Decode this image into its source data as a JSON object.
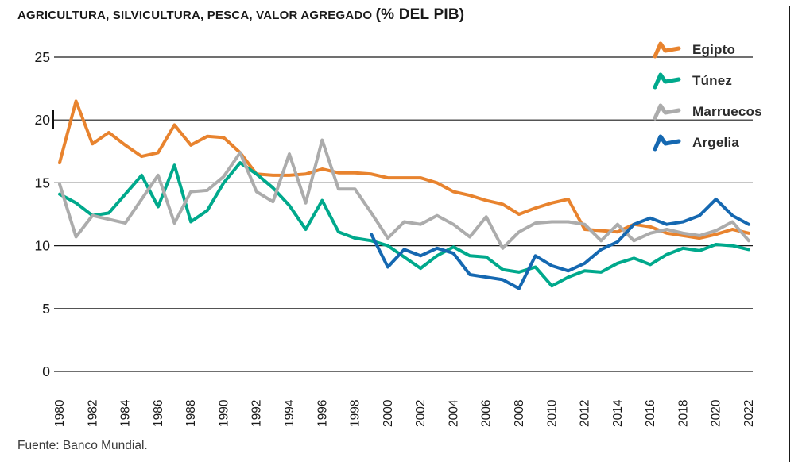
{
  "title": {
    "main": "AGRICULTURA, SILVICULTURA, PESCA, VALOR AGREGADO",
    "unit": "(% DEL PIB)"
  },
  "source": "Fuente: Banco Mundial.",
  "colors": {
    "egipto": "#E8832E",
    "tunez": "#00A98C",
    "marruecos": "#ACACAC",
    "argelia": "#1568B1",
    "grid": "#1A1A1A",
    "text": "#1A1A1A"
  },
  "legend": [
    {
      "id": "egipto",
      "label": "Egipto",
      "color": "#E8832E"
    },
    {
      "id": "tunez",
      "label": "Túnez",
      "color": "#00A98C"
    },
    {
      "id": "marruecos",
      "label": "Marruecos",
      "color": "#ACACAC"
    },
    {
      "id": "argelia",
      "label": "Argelia",
      "color": "#1568B1"
    }
  ],
  "chart_data": {
    "type": "line",
    "title": "AGRICULTURA, SILVICULTURA, PESCA, VALOR AGREGADO (% DEL PIB)",
    "xlabel": "",
    "ylabel": "",
    "xlim": [
      1980,
      2022
    ],
    "x_step": 1,
    "ylim": [
      0,
      25
    ],
    "y_ticks": [
      0,
      5,
      10,
      15,
      20,
      25
    ],
    "x_tick_labels": [
      "1980",
      "1982",
      "1984",
      "1986",
      "1988",
      "1990",
      "1992",
      "1994",
      "1996",
      "1998",
      "2000",
      "2002",
      "2004",
      "2006",
      "2008",
      "2010",
      "2012",
      "2014",
      "2016",
      "2018",
      "2020",
      "2022"
    ],
    "grid": "horizontal",
    "legend_position": "top-right",
    "series": [
      {
        "name": "Egipto",
        "color": "#E8832E",
        "values": [
          16.6,
          21.5,
          18.1,
          19.0,
          18.0,
          17.1,
          17.4,
          19.6,
          18.0,
          18.7,
          18.6,
          17.4,
          15.7,
          15.6,
          15.6,
          15.7,
          16.1,
          15.8,
          15.8,
          15.7,
          15.4,
          15.4,
          15.4,
          15.0,
          14.3,
          14.0,
          13.6,
          13.3,
          12.5,
          13.0,
          13.4,
          13.7,
          11.3,
          11.2,
          11.1,
          11.7,
          11.5,
          11.0,
          10.8,
          10.6,
          10.9,
          11.3,
          11.0
        ]
      },
      {
        "name": "Túnez",
        "color": "#00A98C",
        "values": [
          14.1,
          13.4,
          12.4,
          12.6,
          14.1,
          15.6,
          13.1,
          16.4,
          11.9,
          12.8,
          15.0,
          16.6,
          15.7,
          14.6,
          13.2,
          11.3,
          13.6,
          11.1,
          10.6,
          10.4,
          10.0,
          9.1,
          8.2,
          9.2,
          9.9,
          9.2,
          9.1,
          8.1,
          7.9,
          8.3,
          6.8,
          7.5,
          8.0,
          7.9,
          8.6,
          9.0,
          8.5,
          9.3,
          9.8,
          9.6,
          10.1,
          10.0,
          9.7
        ]
      },
      {
        "name": "Marruecos",
        "color": "#ACACAC",
        "values": [
          14.9,
          10.7,
          12.4,
          12.1,
          11.8,
          13.7,
          15.6,
          11.8,
          14.3,
          14.4,
          15.5,
          17.4,
          14.3,
          13.5,
          17.3,
          13.4,
          18.4,
          14.5,
          14.5,
          12.6,
          10.6,
          11.9,
          11.7,
          12.4,
          11.7,
          10.7,
          12.3,
          9.8,
          11.1,
          11.8,
          11.9,
          11.9,
          11.7,
          10.4,
          11.7,
          10.4,
          11.0,
          11.3,
          11.0,
          10.8,
          11.2,
          11.9,
          10.4
        ]
      },
      {
        "name": "Argelia",
        "color": "#1568B1",
        "values": [
          null,
          null,
          null,
          null,
          null,
          null,
          null,
          null,
          null,
          null,
          null,
          null,
          null,
          null,
          null,
          null,
          null,
          null,
          null,
          10.9,
          8.3,
          9.7,
          9.2,
          9.8,
          9.4,
          7.7,
          7.5,
          7.3,
          6.6,
          9.2,
          8.4,
          8.0,
          8.6,
          9.7,
          10.3,
          11.7,
          12.2,
          11.7,
          11.9,
          12.4,
          13.7,
          12.4,
          11.7
        ]
      }
    ]
  }
}
